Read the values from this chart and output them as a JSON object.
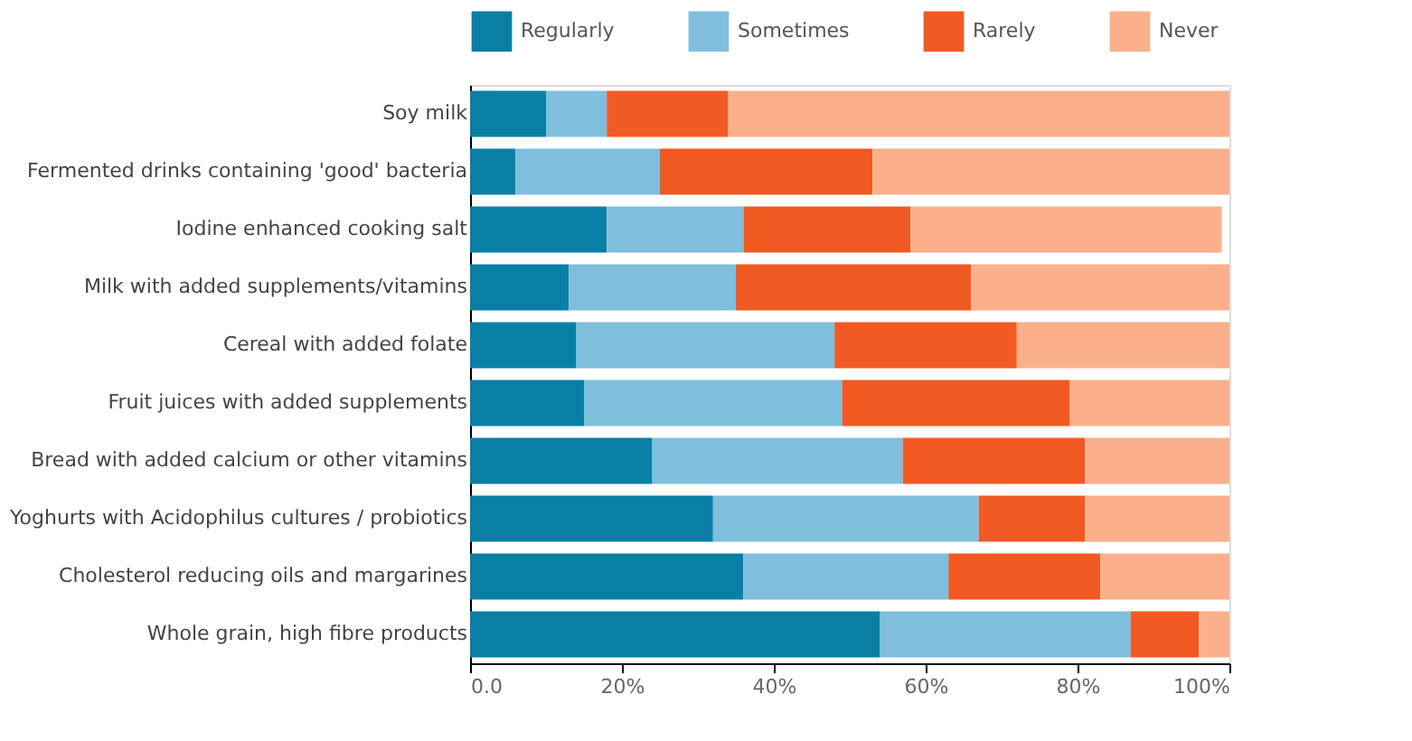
{
  "chart_data": {
    "type": "bar",
    "orientation": "horizontal",
    "stacked": true,
    "legend": "top",
    "categories": [
      "Soy milk",
      "Fermented drinks containing 'good' bacteria",
      "Iodine enhanced cooking salt",
      "Milk with added supplements/vitamins",
      "Cereal with added folate",
      "Fruit juices with added supplements",
      "Bread with added calcium or other vitamins",
      "Yoghurts with Acidophilus cultures / probiotics",
      "Cholesterol reducing oils and margarines",
      "Whole grain, high fibre products"
    ],
    "series": [
      {
        "name": "Regularly",
        "color": "#0a7fa6",
        "values": [
          10,
          6,
          18,
          13,
          14,
          15,
          24,
          32,
          36,
          54
        ]
      },
      {
        "name": "Sometimes",
        "color": "#7fbfdc",
        "values": [
          8,
          19,
          18,
          22,
          34,
          34,
          33,
          35,
          27,
          33
        ]
      },
      {
        "name": "Rarely",
        "color": "#f15a22",
        "values": [
          16,
          28,
          22,
          31,
          24,
          30,
          24,
          14,
          20,
          9
        ]
      },
      {
        "name": "Never",
        "color": "#fbb08c",
        "values": [
          66,
          47,
          41,
          34,
          28,
          21,
          19,
          19,
          17,
          4
        ]
      }
    ],
    "xlim": [
      0,
      100
    ],
    "xticks": [
      {
        "value": 0,
        "label": "0.0"
      },
      {
        "value": 20,
        "label": "20%"
      },
      {
        "value": 40,
        "label": "40%"
      },
      {
        "value": 60,
        "label": "60%"
      },
      {
        "value": 80,
        "label": "80%"
      },
      {
        "value": 100,
        "label": "100%"
      }
    ]
  }
}
